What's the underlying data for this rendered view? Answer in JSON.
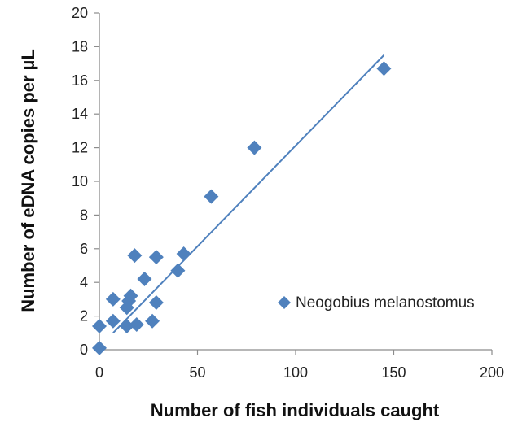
{
  "chart_data": {
    "type": "scatter",
    "title": "",
    "xlabel": "Number of fish individuals caught",
    "ylabel": "Number of eDNA copies per µL",
    "xlim": [
      0,
      200
    ],
    "ylim": [
      0,
      20
    ],
    "xticks": [
      "0",
      "50",
      "100",
      "150",
      "200"
    ],
    "yticks": [
      "0",
      "2",
      "4",
      "6",
      "8",
      "10",
      "12",
      "14",
      "16",
      "18",
      "20"
    ],
    "grid": false,
    "legend_position": "right",
    "series": [
      {
        "name": "Neogobius melanostomus",
        "marker": "diamond",
        "color": "#4f81bd",
        "points": [
          {
            "x": 0,
            "y": 0.1
          },
          {
            "x": 0,
            "y": 1.4
          },
          {
            "x": 7,
            "y": 1.7
          },
          {
            "x": 7,
            "y": 3.0
          },
          {
            "x": 14,
            "y": 1.4
          },
          {
            "x": 14,
            "y": 2.5
          },
          {
            "x": 15,
            "y": 2.9
          },
          {
            "x": 16,
            "y": 3.2
          },
          {
            "x": 18,
            "y": 5.6
          },
          {
            "x": 19,
            "y": 1.5
          },
          {
            "x": 23,
            "y": 4.2
          },
          {
            "x": 27,
            "y": 1.7
          },
          {
            "x": 29,
            "y": 2.8
          },
          {
            "x": 29,
            "y": 5.5
          },
          {
            "x": 40,
            "y": 4.7
          },
          {
            "x": 43,
            "y": 5.7
          },
          {
            "x": 57,
            "y": 9.1
          },
          {
            "x": 79,
            "y": 12.0
          },
          {
            "x": 145,
            "y": 16.7
          }
        ]
      }
    ],
    "trendline": {
      "type": "linear",
      "color": "#4f81bd",
      "x": [
        7,
        145
      ],
      "y": [
        1.0,
        17.5
      ]
    }
  }
}
